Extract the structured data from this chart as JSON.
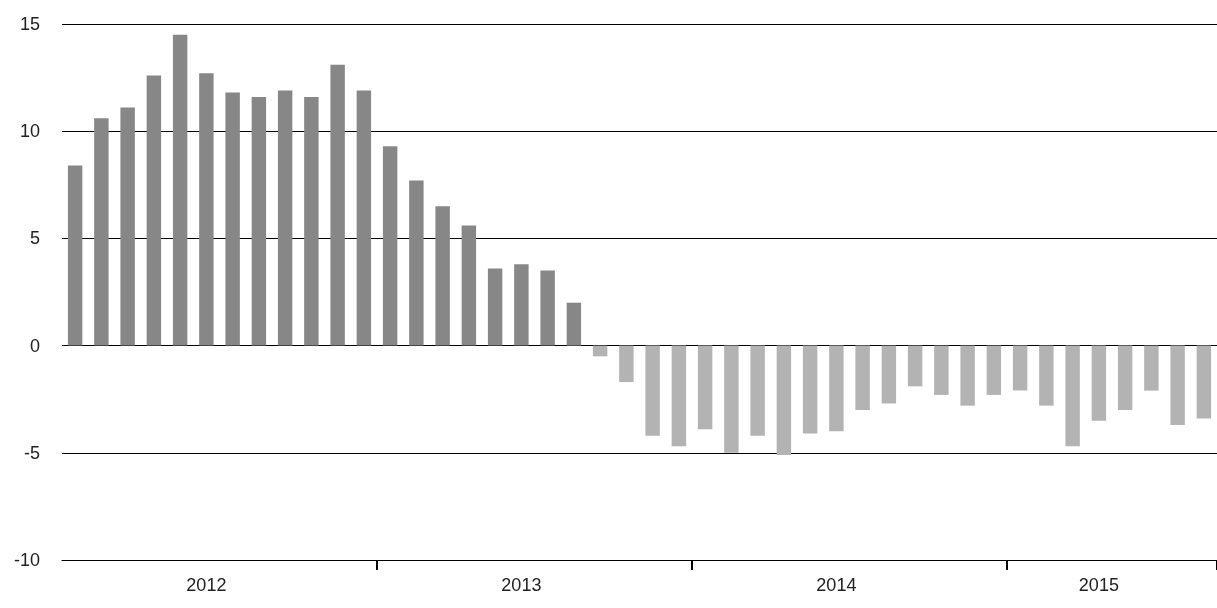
{
  "chart_data": {
    "type": "bar",
    "categories": [
      null,
      null,
      null,
      null,
      null,
      "2012",
      null,
      null,
      null,
      null,
      null,
      null,
      null,
      null,
      null,
      null,
      null,
      "2013",
      null,
      null,
      null,
      null,
      null,
      null,
      null,
      null,
      null,
      null,
      null,
      "2014",
      null,
      null,
      null,
      null,
      null,
      null,
      null,
      null,
      null,
      "2015",
      null,
      null,
      null,
      null
    ],
    "values": [
      8.4,
      10.6,
      11.1,
      12.6,
      14.5,
      12.7,
      11.8,
      11.6,
      11.9,
      11.6,
      13.1,
      11.9,
      9.3,
      7.7,
      6.5,
      5.6,
      3.6,
      3.8,
      3.5,
      2.0,
      -0.5,
      -1.7,
      -4.2,
      -4.7,
      -3.9,
      -5.0,
      -4.2,
      -5.1,
      -4.1,
      -4.0,
      -3.0,
      -2.7,
      -1.9,
      -2.3,
      -2.8,
      -2.3,
      -2.1,
      -2.8,
      -4.7,
      -3.5,
      -3.0,
      -2.1,
      -3.7,
      -3.4
    ],
    "colors": [
      "#878787",
      "#878787",
      "#878787",
      "#878787",
      "#878787",
      "#878787",
      "#878787",
      "#878787",
      "#878787",
      "#878787",
      "#878787",
      "#878787",
      "#878787",
      "#878787",
      "#878787",
      "#878787",
      "#878787",
      "#878787",
      "#878787",
      "#878787",
      "#b3b3b3",
      "#b3b3b3",
      "#b3b3b3",
      "#b3b3b3",
      "#b3b3b3",
      "#b3b3b3",
      "#b3b3b3",
      "#b3b3b3",
      "#b3b3b3",
      "#b3b3b3",
      "#b3b3b3",
      "#b3b3b3",
      "#b3b3b3",
      "#b3b3b3",
      "#b3b3b3",
      "#b3b3b3",
      "#b3b3b3",
      "#b3b3b3",
      "#b3b3b3",
      "#b3b3b3",
      "#b3b3b3",
      "#b3b3b3",
      "#b3b3b3",
      "#b3b3b3"
    ],
    "ylim": [
      -10,
      15
    ],
    "yticks": [
      -10,
      -5,
      0,
      5,
      10,
      15
    ],
    "grid": "y"
  }
}
